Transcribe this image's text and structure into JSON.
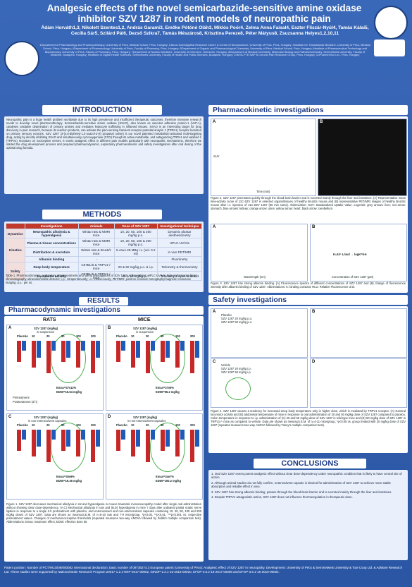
{
  "header": {
    "title": "Analgesic effects of the novel semicarbazide-sensitive amine oxidase inhibitor SZV 1287 in rodent models of neuropathic pain",
    "authors": "Ádám Horváth1,3, Nikolett Szentes1,2, András Garami3, Emőke Pótóné Oláh3, Miklós Poór4, Zelma Anna Faisal4, Eszter Fliszár-Nyúl4, Tamás Kálai5, Cecília Sár5, Szilárd Pál6, Dezső Szikra7, Tamás Mészáros8, Krisztina Pereze8, Péter Mátyus8, Zsuzsanna Helyes1,2,10,11",
    "affiliations": "1Department of Pharmacology and Pharmacotherapy, University of Pécs, Medical School, Pécs, Hungary; 2János Szentágothai Research Centre & Centre of Neuroscience, University of Pécs, Pécs, Hungary; 3Institute for Translational Medicine, University of Pécs, Medical School, Pécs, Hungary; 4Department of Pharmacology, University of Pécs, Faculty of Pharmacy, Pécs, Hungary; 5Department of Organic and Pharmacological Chemistry, University of Pécs, Medical School, Pécs, Hungary; 6Institute of Pharmaceutical Technology and Biopharmacy, University of Pécs, Faculty of Pharmacy, Pécs, Hungary; 7Department of Nuclear Medicine, University of Debrecen, Debrecen, Hungary; 8Department of Medical Chemistry, Molecular Biology and Pathobiochemistry, Semmelweis University, Faculty of Medicine, Budapest, Hungary; 9Institute of Digital Health Sciences, Semmelweis University, Faculty of Health and Public Services, Budapest, Hungary; 10MTA-PTE NAP B Chronic Pain Research Group, Pécs, Hungary; 11PharmInVivo Ltd., Pécs, Hungary",
    "logo_left": "university-seal",
    "logo_right": "research-centre-logo"
  },
  "intro": {
    "heading": "INTRODUCTION",
    "text": "Neuropathic pain is a huge health problem worldwide due to its high prevalence and insufficient therapeutic outcomes, therefore intensive research needs to develop novel pharmacotherapy. Semicarbazide-sensitive amine oxidase (SSAO), also known as vascular adhesion protein-1 (VAP-1), catalyses oxidative deamination of primary amines and mediates leukocyte trafficking in inflamed tissues. SSAO is an interesting target for drug discovery in pain research, because its reaction products, can activate the pain-sensing transient receptor potential ankyrin 1 (TRPA1) receptor localized on primary sensory neurons. SZV 1287 (3-(4,5-diphenyl-1,3-oxazol-2-yl) propanal oxime) is our novel patented metabolism-activated multi-targeting drug, acting by directly inhibiting SSAO and simultaneously cyclooxygenase (COX) through its active metabolite, and antagonizing TRPA1 and vanilloid 1 (TRPV1) receptors on nociceptive nerves. It exerts analgesic effect in different pain models particularly with neuropathic mechanisms, therefore we started the drug development process and prepared pharmacodynamic, exploratory pharmacokinetic and safety investigations after oral dosing of the optimal drug formula."
  },
  "methods": {
    "heading": "METHODS",
    "columns": [
      "Investigations",
      "Animals",
      "Dose of SZV 1287",
      "Investigational technique"
    ],
    "groups": [
      {
        "name": "Dynamics",
        "rows": [
          [
            "Neuropathic allodynia & hyperalgesia",
            "Wistar rats & NMRI mice",
            "10, 20, 50, 100 & 200 mg/kg p.o.",
            "Dynamic plantar aesthesiometry"
          ]
        ]
      },
      {
        "name": "Kinetics",
        "rows": [
          [
            "Plasma & tissue concentrations",
            "Wistar rats & NMRI mice",
            "10, 20, 50, 100 & 200 mg/kg p.o.",
            "HPLC-UV/Vis"
          ],
          [
            "Distribution & excretion",
            "Wistar rats & BALB/c mice",
            "5.44±1.28 MBq i.v. (vol. 0.2 ml)",
            "in vivo PET/MRI"
          ],
          [
            "Albumin binding",
            "-",
            "-",
            "Fluorimetry"
          ]
        ]
      },
      {
        "name": "Safety",
        "rows": [
          [
            "Deep body temperature",
            "C57BL/6 & TRPV1-/- mice",
            "20 & 50 mg/kg p.o. & i.p.",
            "Telemetry & thermometry"
          ],
          [
            "Locomotor activity",
            "C57BL/6 & TRPV1-/- mice",
            "20 & 50 mg/kg p.o.",
            "Telemetry & open field test"
          ]
        ]
      }
    ],
    "caption": "Table 1. Pharmacodynamic, exploratory pharmacokinetic and safety investigations of SZV 1287. Abbreviations: HPLC-UV/Vis: high-performance liquid chromatography-ultraviolet/visible detector; i.p.: intraperitoneally; i.v.: intravenously; PET/MRI: positron emission tomography/magnetic resonance imaging; p.o.: per os."
  },
  "results": {
    "heading": "RESULTS",
    "pd_heading": "Pharmacodynamic investigations",
    "rats_label": "RATS",
    "mice_label": "MICE",
    "panel_a": "A",
    "panel_b": "B",
    "panel_c": "C",
    "panel_d": "D",
    "dose_title": "SZV 1287 (mg/kg)",
    "dose_sub": "in suspension",
    "dose_sub2": "in non-enterosolvent capsules",
    "dose_labels": [
      "Placebo",
      "10",
      "20",
      "50",
      "100",
      "200"
    ],
    "emax_a": "Emax=47±12%",
    "ed50_a": "ED50=16.64 mg/kg",
    "emax_b": "Emax=37±6%",
    "ed50_b": "ED50=96.2 mg/kg",
    "emax_c": "Emax=30±9%",
    "ed50_c": "ED50=19.35 mg/kg",
    "emax_d": "Emax=34±7%",
    "ed50_d": "ED50=100.2 mg/kg",
    "ylabel": "Change of mechanonociceptive threshold (%)",
    "legend_pre": "Pretreatment",
    "legend_post": "Posttreatment (3 h)",
    "fig1_caption": "Figure 1. SZV 1287 decreases mechanical allodynia in rat and hyperalgesia in mouse traumatic mononeuropathy model after single oral administration without showing clear dose-dependency. (A,C) Mechanical allodynia in rats and (B,D) hyperalgesia in mice 7 days after unilateral partial sciatic nerve ligation in response to a single 2-h pretreatment with placebo, and enterosolvent and non-enterosolvent capsules containing 10, 20, 50, 100 and 200 mg/kg doses of SZV 1287. Data are shown as means±S.E.M. of n=6-10 rats and 7-9 mice/group, *p<0.05, **p<0.01, ***p<0.001 vs. respective pretreatment values. Changes of mechanonociceptive thresholds (repeated measures two-way ANOVA followed by Šidák's multiple comparison test). Abbreviations: Emax: maximum effect; ED50: effective dose 50."
  },
  "pk": {
    "heading": "Pharmacokinetic investigations",
    "fig2_caption": "Figure 2. SZV 1287 penetrates quickly through the blood-brain barrier and is excreted mainly through the liver and intestines. (A) Representative mean time-activity curve of 11C-SZV 1287 in selected organs/tissues of healthy BALB/c mouse and (B) representative PET/MRI images of healthy BALB/c mouse after i.v. injection of 11C-SZV 1287 (90 min sums). Abbreviation: SUV: Standardized Uptake Value. Legends: grey arrows: liver; red arrow: stomach; blue arrows: kidney; orange arrow: urine; yellow arrow: heart; black arrow: cerebellum.",
    "fig3_caption": "Figure 3. SZV 1287 has strong albumin binding. (A) Fluorescence spectra of different concentrations of SZV 1287 and (B) change of fluorescence intensity after albumin binding of SZV 1287. Abbreviations: K: binding constant; RLU: Relative Fluorescence Unit.",
    "k_label": "K≈10⁵ L/mol → logK=5-6",
    "fig3_xlabel": "Wavelength (nm)",
    "fig3b_xlabel": "Concentration of SZV 1287 (μM)",
    "fig3_ylabel": "Fluorescence intensity (RLU)",
    "fig2_ylabel": "SUV",
    "fig2_xlabel": "Time (min)"
  },
  "safety": {
    "heading": "Safety investigations",
    "legend_a": [
      "Placebo",
      "SZV 1287 20 mg/kg p.o.",
      "SZV 1287 50 mg/kg p.o."
    ],
    "legend_c": [
      "Vehicle",
      "SZV 1287 20 mg/kg i.p.",
      "SZV 1287 50 mg/kg i.p."
    ],
    "fig4_caption": "Figure 4. SZV 1287 causes a tendency for increased deep body temperature only in higher dose, which is mediated by TRPV1 receptor. (A) General locomotor activity and (B) abdominal temperature of mice in response to oral administration of 20 and 50 mg/kg dose of SZV 1287 compared to placebo. Colon temperature in response to i.p. administration of (C) 20 and 50 mg/kg dose of SZV 1287 in wild type mice and (D) 50 mg/kg dose of SZV 1287 in TRPV1-/- mice as compared to vehicle. Data are shown as means±S.E.M. of n=4-11 mice/group, *p<0.05 vs. group treated with 20 mg/kg dose of SZV 1287 (repeated measures two-way ANOVA followed by Tukey's multiple comparison test)."
  },
  "conclusions": {
    "heading": "CONCLUSIONS",
    "items": [
      "1. Oral SZV 1287 exerts potent analgesic effect without clear dose-dependency under neuropathic condition that is likely to have central site of action.",
      "2. Although animal studies do not fully confirm, enterosolvent capsule is desired for administration of SZV 1287 to achieve more stable absorption and reliable effect in vivo.",
      "3. SZV 1287 has strong albumin binding, passes through the blood-brain barrier and is excreted mainly through the liver and intestines.",
      "4. Despite TRPV1 antagonistic action, SZV 1287 does not influence thermoregulation in therapeutic dose."
    ]
  },
  "footer": {
    "text": "Patent position: Number of PCT/HU2009/000082 international declaration; basic number of 09736274.3 European patent (University of Pécs): Analgesic effect of SZV 1287 in neuropathy. Development: University of Pécs & Semmelweis University & Toxi-Coop Ltd. & AdWare Research Ltd. These studies were supported by National Brain Research Program 20017-1.2.1-NKP-2017-00002, GINOP-2.2.1-15-2016-00020, EFOP-3.6.2-16-2017-00008 and EFOP-3.6.1-16-2016-00004."
  },
  "colors": {
    "accent": "#c0392b",
    "bar_red": "#c62828",
    "bar_blue": "#1e5bb8",
    "highlight": "#4caf50"
  }
}
